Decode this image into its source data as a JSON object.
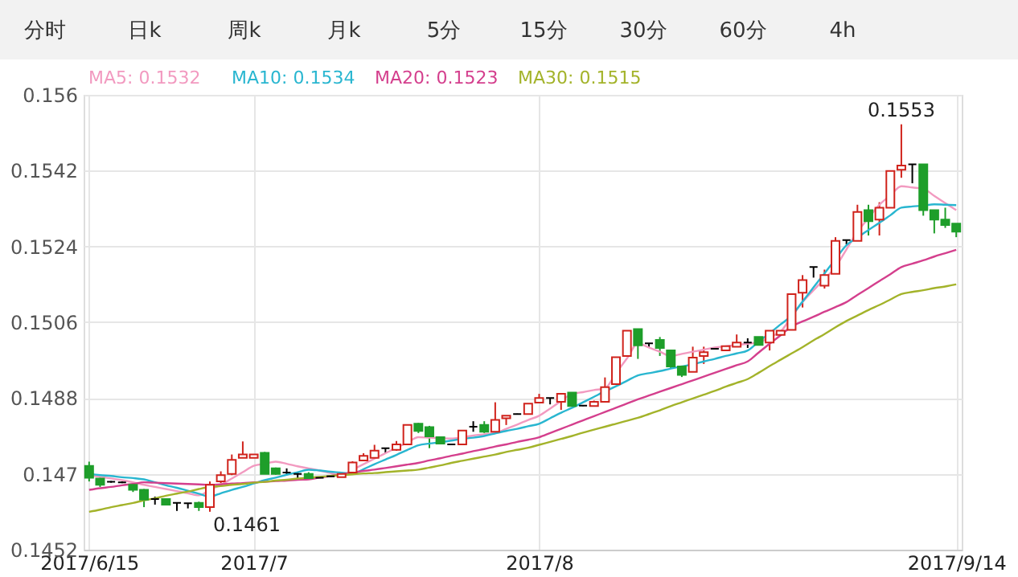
{
  "chart_data": {
    "type": "candlestick",
    "categories": [
      "2017/6/15",
      null,
      null,
      null,
      null,
      null,
      null,
      null,
      null,
      null,
      null,
      null,
      null,
      null,
      null,
      "2017/7",
      null,
      null,
      null,
      null,
      null,
      null,
      null,
      null,
      null,
      null,
      null,
      null,
      null,
      null,
      null,
      null,
      null,
      null,
      null,
      null,
      null,
      null,
      null,
      null,
      null,
      "2017/8",
      null,
      null,
      null,
      null,
      null,
      null,
      null,
      null,
      null,
      null,
      null,
      null,
      null,
      null,
      null,
      null,
      null,
      null,
      null,
      null,
      null,
      null,
      null,
      null,
      null,
      null,
      null,
      null,
      null,
      null,
      null,
      null,
      null,
      null,
      null,
      null,
      null,
      "2017/9/14"
    ],
    "ohlc": [
      [
        0.14719,
        0.14729,
        0.14682,
        0.14691
      ],
      [
        0.14689,
        0.14691,
        0.14669,
        0.14674
      ],
      [
        0.14681,
        0.14683,
        0.14679,
        0.14681
      ],
      [
        0.1468,
        0.14682,
        0.14678,
        0.1468
      ],
      [
        0.14674,
        0.14677,
        0.14657,
        0.14662
      ],
      [
        0.14662,
        0.14664,
        0.14621,
        0.14639
      ],
      [
        0.1464,
        0.14646,
        0.14627,
        0.1464
      ],
      [
        0.1464,
        0.14641,
        0.14626,
        0.14627
      ],
      [
        0.14631,
        0.14632,
        0.14612,
        0.14631
      ],
      [
        0.1463,
        0.1463,
        0.14618,
        0.1463
      ],
      [
        0.14631,
        0.14634,
        0.14612,
        0.14621
      ],
      [
        0.14621,
        0.14682,
        0.1461,
        0.14674
      ],
      [
        0.14682,
        0.14706,
        0.14678,
        0.14697
      ],
      [
        0.147,
        0.14746,
        0.14697,
        0.14733
      ],
      [
        0.14738,
        0.14777,
        0.14738,
        0.14746
      ],
      [
        0.14738,
        0.14746,
        0.14738,
        0.14746
      ],
      [
        0.1475,
        0.14752,
        0.147,
        0.147
      ],
      [
        0.14713,
        0.14715,
        0.14698,
        0.147
      ],
      [
        0.14703,
        0.14713,
        0.14697,
        0.14703
      ],
      [
        0.147,
        0.14705,
        0.1469,
        0.147
      ],
      [
        0.147,
        0.14704,
        0.14687,
        0.1469
      ],
      [
        0.14691,
        0.14692,
        0.1469,
        0.14691
      ],
      [
        0.14694,
        0.14695,
        0.14693,
        0.14694
      ],
      [
        0.14692,
        0.147,
        0.14692,
        0.147
      ],
      [
        0.14703,
        0.1473,
        0.14703,
        0.14727
      ],
      [
        0.14732,
        0.14749,
        0.14732,
        0.14743
      ],
      [
        0.14738,
        0.14769,
        0.14738,
        0.14755
      ],
      [
        0.14761,
        0.14761,
        0.14749,
        0.14761
      ],
      [
        0.14757,
        0.14778,
        0.14755,
        0.1477
      ],
      [
        0.1477,
        0.14816,
        0.1477,
        0.14816
      ],
      [
        0.14819,
        0.14821,
        0.14797,
        0.14802
      ],
      [
        0.14811,
        0.14814,
        0.14761,
        0.14789
      ],
      [
        0.14787,
        0.14787,
        0.1477,
        0.14772
      ],
      [
        0.1477,
        0.14771,
        0.14769,
        0.1477
      ],
      [
        0.1477,
        0.14803,
        0.1477,
        0.14803
      ],
      [
        0.14812,
        0.14825,
        0.148,
        0.14812
      ],
      [
        0.14816,
        0.14825,
        0.14797,
        0.148
      ],
      [
        0.148,
        0.1487,
        0.148,
        0.14828
      ],
      [
        0.14832,
        0.14838,
        0.14816,
        0.14838
      ],
      [
        0.14842,
        0.14843,
        0.14841,
        0.14842
      ],
      [
        0.14842,
        0.14867,
        0.14842,
        0.14867
      ],
      [
        0.14869,
        0.1489,
        0.14869,
        0.1488
      ],
      [
        0.1488,
        0.1488,
        0.14865,
        0.1488
      ],
      [
        0.14871,
        0.1489,
        0.14852,
        0.1489
      ],
      [
        0.14893,
        0.14893,
        0.14861,
        0.14861
      ],
      [
        0.14862,
        0.14863,
        0.14861,
        0.14862
      ],
      [
        0.14861,
        0.14874,
        0.14861,
        0.14871
      ],
      [
        0.14871,
        0.14929,
        0.14871,
        0.14906
      ],
      [
        0.14913,
        0.14977,
        0.14913,
        0.14977
      ],
      [
        0.1498,
        0.1504,
        0.1498,
        0.1504
      ],
      [
        0.15044,
        0.15044,
        0.14973,
        0.15005
      ],
      [
        0.1501,
        0.1501,
        0.14999,
        0.1501
      ],
      [
        0.15018,
        0.15025,
        0.1498,
        0.14999
      ],
      [
        0.14993,
        0.14993,
        0.1495,
        0.14955
      ],
      [
        0.14955,
        0.14955,
        0.1493,
        0.14935
      ],
      [
        0.14942,
        0.15002,
        0.14942,
        0.14976
      ],
      [
        0.1498,
        0.15002,
        0.14961,
        0.14989
      ],
      [
        0.14997,
        0.14998,
        0.14996,
        0.14997
      ],
      [
        0.14993,
        0.15003,
        0.14993,
        0.15003
      ],
      [
        0.15002,
        0.15031,
        0.15002,
        0.15012
      ],
      [
        0.15012,
        0.15022,
        0.14999,
        0.15012
      ],
      [
        0.15025,
        0.15025,
        0.15006,
        0.15006
      ],
      [
        0.15012,
        0.1504,
        0.14993,
        0.1504
      ],
      [
        0.1503,
        0.1504,
        0.1503,
        0.1504
      ],
      [
        0.15042,
        0.15127,
        0.15042,
        0.15127
      ],
      [
        0.1513,
        0.15172,
        0.15095,
        0.1516
      ],
      [
        0.15191,
        0.15191,
        0.15166,
        0.15191
      ],
      [
        0.15147,
        0.15185,
        0.1514,
        0.15172
      ],
      [
        0.15175,
        0.15262,
        0.15175,
        0.15253
      ],
      [
        0.15255,
        0.15255,
        0.15245,
        0.15255
      ],
      [
        0.15253,
        0.15339,
        0.15253,
        0.15322
      ],
      [
        0.15326,
        0.15339,
        0.15266,
        0.153
      ],
      [
        0.15304,
        0.15345,
        0.15266,
        0.15332
      ],
      [
        0.15332,
        0.15419,
        0.15332,
        0.15419
      ],
      [
        0.15422,
        0.1553,
        0.15403,
        0.15432
      ],
      [
        0.15435,
        0.15435,
        0.1539,
        0.15435
      ],
      [
        0.15435,
        0.15435,
        0.15313,
        0.15326
      ],
      [
        0.15326,
        0.15326,
        0.15271,
        0.15304
      ],
      [
        0.15304,
        0.15332,
        0.15284,
        0.15291
      ],
      [
        0.15294,
        0.15294,
        0.15262,
        0.15275
      ]
    ],
    "colors": [
      "#1e9e2a",
      "#1e9e2a",
      "#000000",
      "#000000",
      "#1e9e2a",
      "#1e9e2a",
      "#000000",
      "#1e9e2a",
      "#000000",
      "#000000",
      "#1e9e2a",
      "#d0231c",
      "#d0231c",
      "#d0231c",
      "#d0231c",
      "#d0231c",
      "#1e9e2a",
      "#1e9e2a",
      "#000000",
      "#000000",
      "#1e9e2a",
      "#000000",
      "#000000",
      "#d0231c",
      "#d0231c",
      "#d0231c",
      "#d0231c",
      "#000000",
      "#d0231c",
      "#d0231c",
      "#1e9e2a",
      "#1e9e2a",
      "#1e9e2a",
      "#000000",
      "#d0231c",
      "#000000",
      "#1e9e2a",
      "#d0231c",
      "#d0231c",
      "#000000",
      "#d0231c",
      "#d0231c",
      "#000000",
      "#d0231c",
      "#1e9e2a",
      "#000000",
      "#d0231c",
      "#d0231c",
      "#d0231c",
      "#d0231c",
      "#1e9e2a",
      "#000000",
      "#1e9e2a",
      "#1e9e2a",
      "#1e9e2a",
      "#d0231c",
      "#d0231c",
      "#000000",
      "#d0231c",
      "#d0231c",
      "#000000",
      "#1e9e2a",
      "#d0231c",
      "#d0231c",
      "#d0231c",
      "#d0231c",
      "#000000",
      "#d0231c",
      "#d0231c",
      "#000000",
      "#d0231c",
      "#1e9e2a",
      "#d0231c",
      "#d0231c",
      "#d0231c",
      "#000000",
      "#1e9e2a",
      "#1e9e2a",
      "#1e9e2a",
      "#1e9e2a"
    ],
    "series": [
      {
        "name": "MA5: 0.1532",
        "color": "#f29ac0",
        "type": "line",
        "values": [
          0.14697,
          0.14693,
          0.14689,
          0.14685,
          0.1468,
          0.14674,
          0.14669,
          0.14664,
          0.14659,
          0.14654,
          0.14649,
          0.14662,
          0.14674,
          0.14689,
          0.14704,
          0.14719,
          0.14724,
          0.14729,
          0.14724,
          0.14718,
          0.14713,
          0.14708,
          0.14702,
          0.14697,
          0.1471,
          0.14723,
          0.14736,
          0.14749,
          0.14762,
          0.14774,
          0.14787,
          0.14786,
          0.14785,
          0.14784,
          0.14787,
          0.14791,
          0.14794,
          0.14797,
          0.14807,
          0.14817,
          0.14828,
          0.14838,
          0.14855,
          0.14873,
          0.1489,
          0.14894,
          0.14899,
          0.14903,
          0.14939,
          0.14974,
          0.1501,
          0.15,
          0.1499,
          0.1498,
          0.14985,
          0.1499,
          0.14995,
          0.15,
          0.15003,
          0.15006,
          0.15009,
          0.15012,
          0.15025,
          0.15038,
          0.15073,
          0.15108,
          0.15136,
          0.15163,
          0.15191,
          0.15233,
          0.15275,
          0.15307,
          0.15339,
          0.15361,
          0.15383,
          0.1538,
          0.15377,
          0.1536,
          0.15343,
          0.15326
        ]
      },
      {
        "name": "MA10: 0.1534",
        "color": "#29b6d0",
        "type": "line",
        "values": [
          0.147,
          0.14697,
          0.14695,
          0.14692,
          0.1469,
          0.14687,
          0.1468,
          0.14673,
          0.14667,
          0.1466,
          0.14653,
          0.14646,
          0.14654,
          0.14662,
          0.14669,
          0.14677,
          0.14685,
          0.14691,
          0.14698,
          0.14704,
          0.1471,
          0.14708,
          0.14705,
          0.14703,
          0.147,
          0.14711,
          0.14723,
          0.14734,
          0.14745,
          0.14757,
          0.14768,
          0.14772,
          0.14775,
          0.14779,
          0.14783,
          0.14786,
          0.1479,
          0.14796,
          0.14802,
          0.14807,
          0.14813,
          0.14819,
          0.14832,
          0.14845,
          0.14857,
          0.1487,
          0.14883,
          0.14896,
          0.14908,
          0.14921,
          0.14934,
          0.14939,
          0.14944,
          0.1495,
          0.14955,
          0.1496,
          0.14967,
          0.14973,
          0.1498,
          0.14986,
          0.14993,
          0.15014,
          0.15034,
          0.15055,
          0.15076,
          0.15109,
          0.15143,
          0.15176,
          0.1521,
          0.15243,
          0.15261,
          0.15279,
          0.15296,
          0.15314,
          0.15332,
          0.15335,
          0.15337,
          0.1534,
          0.15339,
          0.15338
        ]
      },
      {
        "name": "MA20: 0.1523",
        "color": "#d43f8d",
        "type": "line",
        "values": [
          0.14662,
          0.14666,
          0.14669,
          0.14673,
          0.14676,
          0.1468,
          0.14679,
          0.14678,
          0.14677,
          0.14676,
          0.14675,
          0.14674,
          0.14675,
          0.14677,
          0.14678,
          0.1468,
          0.14681,
          0.14683,
          0.14684,
          0.14686,
          0.14687,
          0.14691,
          0.14695,
          0.14699,
          0.14703,
          0.14707,
          0.1471,
          0.14714,
          0.14718,
          0.14722,
          0.14726,
          0.14732,
          0.14737,
          0.14743,
          0.14748,
          0.14754,
          0.14759,
          0.14765,
          0.1477,
          0.14776,
          0.14781,
          0.14787,
          0.14797,
          0.14807,
          0.14817,
          0.14827,
          0.14837,
          0.14847,
          0.14857,
          0.14867,
          0.14877,
          0.14886,
          0.14895,
          0.14904,
          0.14913,
          0.14922,
          0.14931,
          0.1494,
          0.14949,
          0.14958,
          0.14967,
          0.14988,
          0.15009,
          0.15029,
          0.1505,
          0.15062,
          0.15073,
          0.15085,
          0.15096,
          0.15108,
          0.15125,
          0.15141,
          0.15158,
          0.15174,
          0.15191,
          0.15199,
          0.15207,
          0.15216,
          0.15224,
          0.15232
        ]
      },
      {
        "name": "MA30: 0.1515",
        "color": "#a3b32a",
        "type": "line",
        "values": [
          0.1461,
          0.14615,
          0.14621,
          0.14626,
          0.14631,
          0.14637,
          0.14642,
          0.14648,
          0.14653,
          0.14658,
          0.14664,
          0.14669,
          0.14671,
          0.14674,
          0.14676,
          0.14679,
          0.14681,
          0.14684,
          0.14686,
          0.14689,
          0.14691,
          0.14693,
          0.14695,
          0.14697,
          0.14699,
          0.14701,
          0.14702,
          0.14704,
          0.14706,
          0.14708,
          0.1471,
          0.14715,
          0.1472,
          0.14726,
          0.14731,
          0.14736,
          0.14741,
          0.14746,
          0.14752,
          0.14757,
          0.14762,
          0.14769,
          0.14776,
          0.14783,
          0.1479,
          0.14798,
          0.14805,
          0.14812,
          0.14819,
          0.14826,
          0.14833,
          0.14842,
          0.14851,
          0.14861,
          0.1487,
          0.14879,
          0.14888,
          0.14897,
          0.14907,
          0.14916,
          0.14925,
          0.1494,
          0.14956,
          0.14971,
          0.14986,
          0.15001,
          0.15017,
          0.15032,
          0.15048,
          0.15063,
          0.15076,
          0.15089,
          0.15101,
          0.15114,
          0.15127,
          0.15132,
          0.15136,
          0.15141,
          0.15145,
          0.1515
        ]
      }
    ],
    "ylim": [
      0.1452,
      0.156
    ],
    "yticks": [
      0.1452,
      0.147,
      0.1488,
      0.1506,
      0.1524,
      0.1542,
      0.156
    ],
    "grid": true,
    "legend": "top left",
    "marker": "none",
    "line_style": "solid",
    "annotations": [
      "分时",
      "日k",
      "周k",
      "月k",
      "5分",
      "15分",
      "30分",
      "60分",
      "4h",
      {
        "text": "0.1553",
        "y": 0.1553
      },
      "0.1461"
    ]
  }
}
